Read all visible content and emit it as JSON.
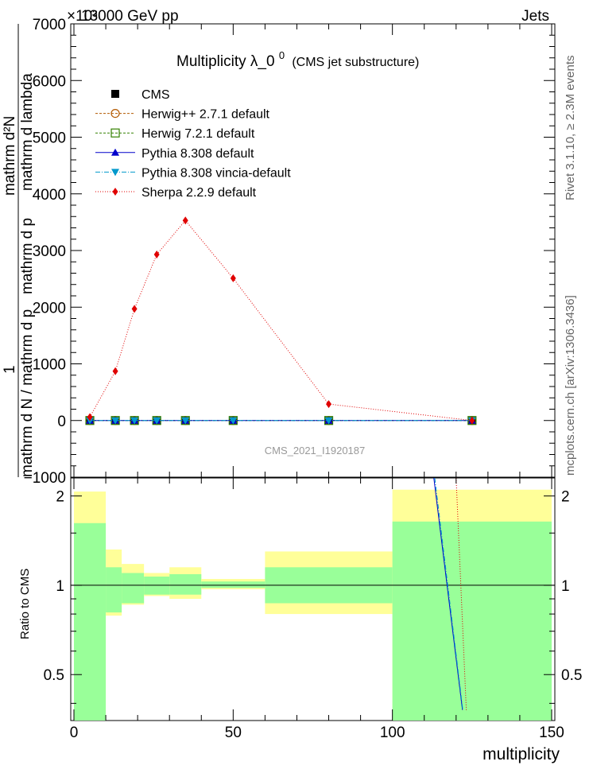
{
  "header": {
    "left": "13000 GeV pp",
    "right": "Jets"
  },
  "side_labels": {
    "rivet": "Rivet 3.1.10, ≥ 2.3M events",
    "mcplots": "mcplots.cern.ch [arXiv:1306.3436]"
  },
  "chart_data": {
    "type": "line",
    "title_main": "Multiplicity  λ_0",
    "title_sup": "0",
    "title_sub": "(CMS jet substructure)",
    "watermark": "CMS_2021_I1920187",
    "upper": {
      "ylabel_num": "mathrm d²N",
      "ylabel_den1": "mathrm d p",
      "ylabel_den2": "mathrm d lambda",
      "ylabel_left1": "1",
      "ylabel_left2": "mathrm d N / mathrm d p",
      "ylabel_exp": "×10³",
      "ylim": [
        -1000,
        7000
      ],
      "yticks": [
        -1000,
        0,
        1000,
        2000,
        3000,
        4000,
        5000,
        6000,
        7000
      ],
      "ytick_labels": [
        "−1000",
        "0",
        "1000",
        "2000",
        "3000",
        "4000",
        "5000",
        "6000",
        "7000"
      ]
    },
    "ratio": {
      "ylabel": "Ratio to CMS",
      "ytick_labels": [
        "0.5",
        "1",
        "2"
      ],
      "yticks": [
        0.5,
        1,
        2
      ]
    },
    "xlabel": "multiplicity",
    "xlim": [
      -1,
      151
    ],
    "xticks": [
      0,
      50,
      100,
      150
    ],
    "xtick_labels": [
      "0",
      "50",
      "100",
      "150"
    ],
    "x": [
      5,
      13,
      19,
      26,
      35,
      50,
      80,
      125
    ],
    "bin_edges": [
      0,
      10,
      15,
      22,
      30,
      40,
      60,
      100,
      150
    ],
    "series": [
      {
        "name": "CMS",
        "style": "data",
        "color": "#000000",
        "marker": "square-filled",
        "values": [
          0,
          0,
          0,
          0,
          0,
          0,
          0,
          0
        ]
      },
      {
        "name": "Herwig++ 2.7.1 default",
        "color": "#b35900",
        "marker": "circle-open",
        "dash": "3,2",
        "values": [
          0,
          0,
          0,
          0,
          0,
          0,
          0,
          0
        ]
      },
      {
        "name": "Herwig 7.2.1 default",
        "color": "#338000",
        "marker": "square-open",
        "dash": "3,2",
        "values": [
          0,
          0,
          0,
          0,
          0,
          0,
          0,
          0
        ]
      },
      {
        "name": "Pythia 8.308 default",
        "color": "#0000cc",
        "marker": "triangle-up",
        "dash": "",
        "values": [
          0,
          0,
          0,
          0,
          0,
          0,
          0,
          0
        ]
      },
      {
        "name": "Pythia 8.308 vincia-default",
        "color": "#0099cc",
        "marker": "triangle-down",
        "dash": "6,2,1,2",
        "values": [
          0,
          0,
          0,
          0,
          0,
          0,
          0,
          0
        ]
      },
      {
        "name": "Sherpa 2.2.9 default",
        "color": "#e00000",
        "marker": "diamond",
        "dash": "1,2",
        "values": [
          60,
          870,
          1970,
          2930,
          3530,
          2510,
          290,
          0
        ]
      }
    ],
    "ratio_bands": {
      "edges": [
        0,
        10,
        15,
        22,
        30,
        40,
        60,
        100,
        150
      ],
      "green_low": [
        0.35,
        0.81,
        0.87,
        0.93,
        0.93,
        0.98,
        0.87,
        0.35
      ],
      "green_high": [
        1.62,
        1.15,
        1.1,
        1.07,
        1.09,
        1.03,
        1.15,
        1.64
      ],
      "yellow_low": [
        0.3,
        0.79,
        0.86,
        0.92,
        0.9,
        0.97,
        0.8,
        0.3
      ],
      "yellow_high": [
        2.07,
        1.32,
        1.18,
        1.1,
        1.15,
        1.05,
        1.3,
        2.1
      ]
    },
    "ratio_lines": [
      {
        "name": "Pythia 8.308 default",
        "color": "#0000cc",
        "dash": "",
        "points": [
          [
            113,
            2.4
          ],
          [
            122,
            0.38
          ]
        ]
      },
      {
        "name": "Pythia 8.308 vincia-default",
        "color": "#0099cc",
        "dash": "6,2,1,2",
        "points": [
          [
            113.3,
            2.4
          ],
          [
            122.1,
            0.38
          ]
        ]
      },
      {
        "name": "Sherpa 2.2.9 default",
        "color": "#e00000",
        "dash": "1,2",
        "points": [
          [
            120,
            2.4
          ],
          [
            123.2,
            0.38
          ]
        ]
      }
    ]
  }
}
